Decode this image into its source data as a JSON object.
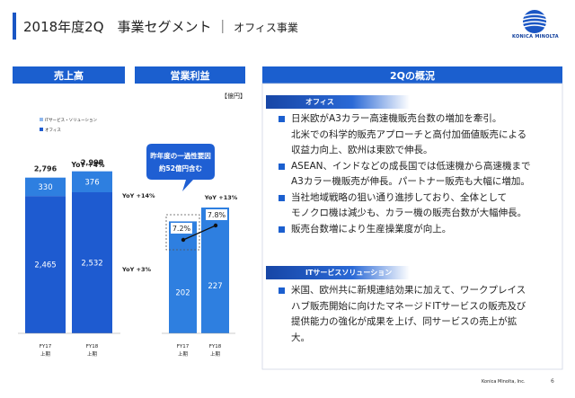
{
  "title": {
    "main": "2018年度2Q　事業セグメント",
    "separator": "｜",
    "sub": "オフィス事業"
  },
  "logo": {
    "text": "KONICA MINOLTA",
    "icon": "globe-logo-icon",
    "color": "#1a56c4"
  },
  "colors": {
    "accent": "#1b5fcf",
    "dark_blue": "#1e5bd0",
    "light_blue": "#2e7fe0",
    "pale_blue": "#8fb7ec"
  },
  "headers": {
    "sales": "売上高",
    "operating_profit": "営業利益",
    "overview": "2Qの概況"
  },
  "unit_label": "【億円】",
  "legend": {
    "it_services": "ITサービス・ソリューション",
    "office": "オフィス"
  },
  "callout": {
    "line1": "昨年度の一過性要因",
    "line2": "約52億円含む"
  },
  "chart_data": [
    {
      "type": "bar",
      "title": "売上高",
      "categories": [
        "FY17 上期",
        "FY18 上期"
      ],
      "category_lines": [
        [
          "FY17",
          "上期"
        ],
        [
          "FY18",
          "上期"
        ]
      ],
      "series": [
        {
          "name": "オフィス",
          "values": [
            2465,
            2532
          ]
        },
        {
          "name": "ITサービス・ソリューション",
          "values": [
            330,
            376
          ]
        }
      ],
      "totals": [
        2796,
        2908
      ],
      "yoy": {
        "total": "YoY +4%",
        "it_services": "YoY +14%",
        "office": "YoY +3%"
      }
    },
    {
      "type": "bar",
      "title": "営業利益",
      "categories": [
        "FY17 上期",
        "FY18 上期"
      ],
      "category_lines": [
        [
          "FY17",
          "上期"
        ],
        [
          "FY18",
          "上期"
        ]
      ],
      "values": [
        202,
        227
      ],
      "margin_line": {
        "values": [
          "7.2%",
          "7.8%"
        ]
      },
      "yoy": "YoY +13%"
    }
  ],
  "sections": [
    {
      "title": "オフィス",
      "bullets": [
        [
          "日米欧がA3カラー高速機販売台数の増加を牽引。",
          "北米での科学的販売アプローチと高付加価値販売による",
          "収益力向上、欧州は東欧で伸長。"
        ],
        [
          "ASEAN、インドなどの成長国では低速機から高速機まで",
          "A3カラー機販売が伸長。パートナー販売も大幅に増加。"
        ],
        [
          "当社地域戦略の狙い通り進捗しており、全体として",
          "モノクロ機は減少も、カラー機の販売台数が大幅伸長。"
        ],
        [
          "販売台数増により生産操業度が向上。"
        ]
      ]
    },
    {
      "title": "ITサービスソリューション",
      "bullets": [
        [
          "米国、欧州共に新規連結効果に加えて、ワークプレイス",
          "ハブ販売開始に向けたマネージドITサービスの販売及び",
          "提供能力の強化が成果を上げ、同サービスの売上が拡",
          "大。"
        ]
      ]
    }
  ],
  "footer": {
    "company": "Konica Minolta, Inc.",
    "page": "6"
  }
}
